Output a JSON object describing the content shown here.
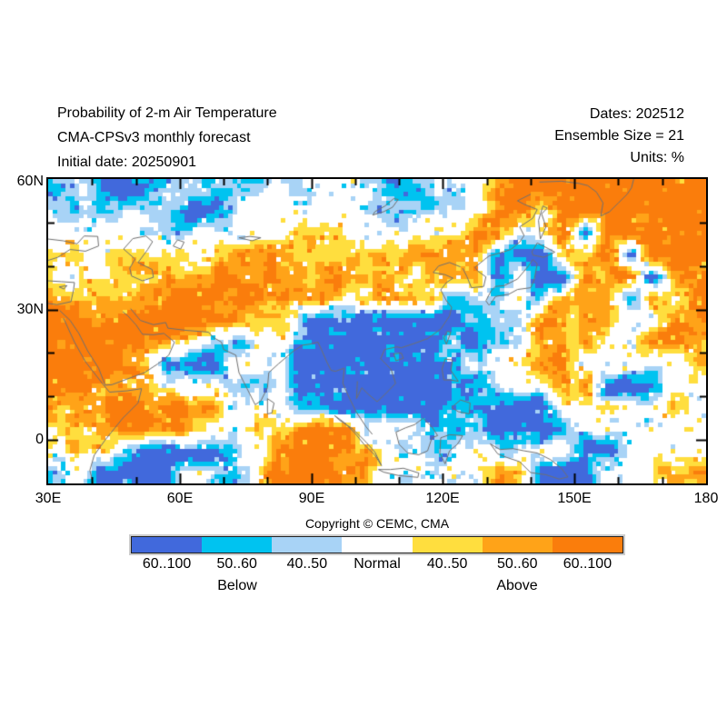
{
  "header": {
    "title_line1": "Probability of 2-m Air Temperature",
    "title_line2": "CMA-CPSv3 monthly forecast",
    "title_line3": "Initial date: 20250901",
    "meta_line1": "Dates: 202512",
    "meta_line2": "Ensemble Size = 21",
    "meta_line3": "Units: %"
  },
  "axes": {
    "y_labels": [
      "60N",
      "30N",
      "0"
    ],
    "x_labels": [
      "30E",
      "60E",
      "90E",
      "120E",
      "150E",
      "180"
    ]
  },
  "copyright": "Copyright © CEMC, CMA",
  "legend": {
    "segments": [
      {
        "label": "60..100",
        "color": "#4169DC"
      },
      {
        "label": "50..60",
        "color": "#00C3F0"
      },
      {
        "label": "40..50",
        "color": "#A8D3F6"
      },
      {
        "label": "Normal",
        "color": "#FFFFFF"
      },
      {
        "label": "40..50",
        "color": "#FFDE3E"
      },
      {
        "label": "50..60",
        "color": "#FFA318"
      },
      {
        "label": "60..100",
        "color": "#FA7D0C"
      }
    ],
    "below_label": "Below",
    "above_label": "Above"
  },
  "chart_data": {
    "type": "heatmap",
    "title": "Probability of 2-m Air Temperature",
    "lon_range": [
      30,
      180
    ],
    "lat_range": [
      -10,
      60
    ],
    "cell_degrees": 5,
    "categories": {
      "3": "below 60..100",
      "2": "below 50..60",
      "1": "below 40..50",
      "0": "normal",
      "a": "above 40..50",
      "b": "above 50..60",
      "c": "above 60..100"
    },
    "palette": {
      "3": "#4169DC",
      "2": "#00C3F0",
      "1": "#A8D3F6",
      "0": "#FFFFFF",
      "a": "#FFDE3E",
      "b": "#FFA318",
      "c": "#FA7D0C"
    },
    "rows_north_to_south": [
      "21232112110100122110bccccccccc",
      "11111133100000122100bb0ccccccc",
      "00001111000aaa00000bb00c3ccccc",
      "aaaaaaaabbbbbbaabbbb333bbc3ccc",
      "aaaabbbbbbbbbbbbaabb3033bbc3bc",
      "bbbbbcccccbbbaabbb21111bbb3b0b",
      "cccccccbbaa13333332211bbbb00bb",
      "ccccbb0130023333332311bbb00bbb",
      "cccba33300033333332100bb00000b",
      "ccbbb000111333333322100bb33300",
      "bbbcccbb00122333332233300000b0",
      "aabccbb00bbbbb1002223331000000",
      "0aa1333310cccbb0111a1100330000",
      "1133330110cccbb01100bb333000bb"
    ]
  }
}
